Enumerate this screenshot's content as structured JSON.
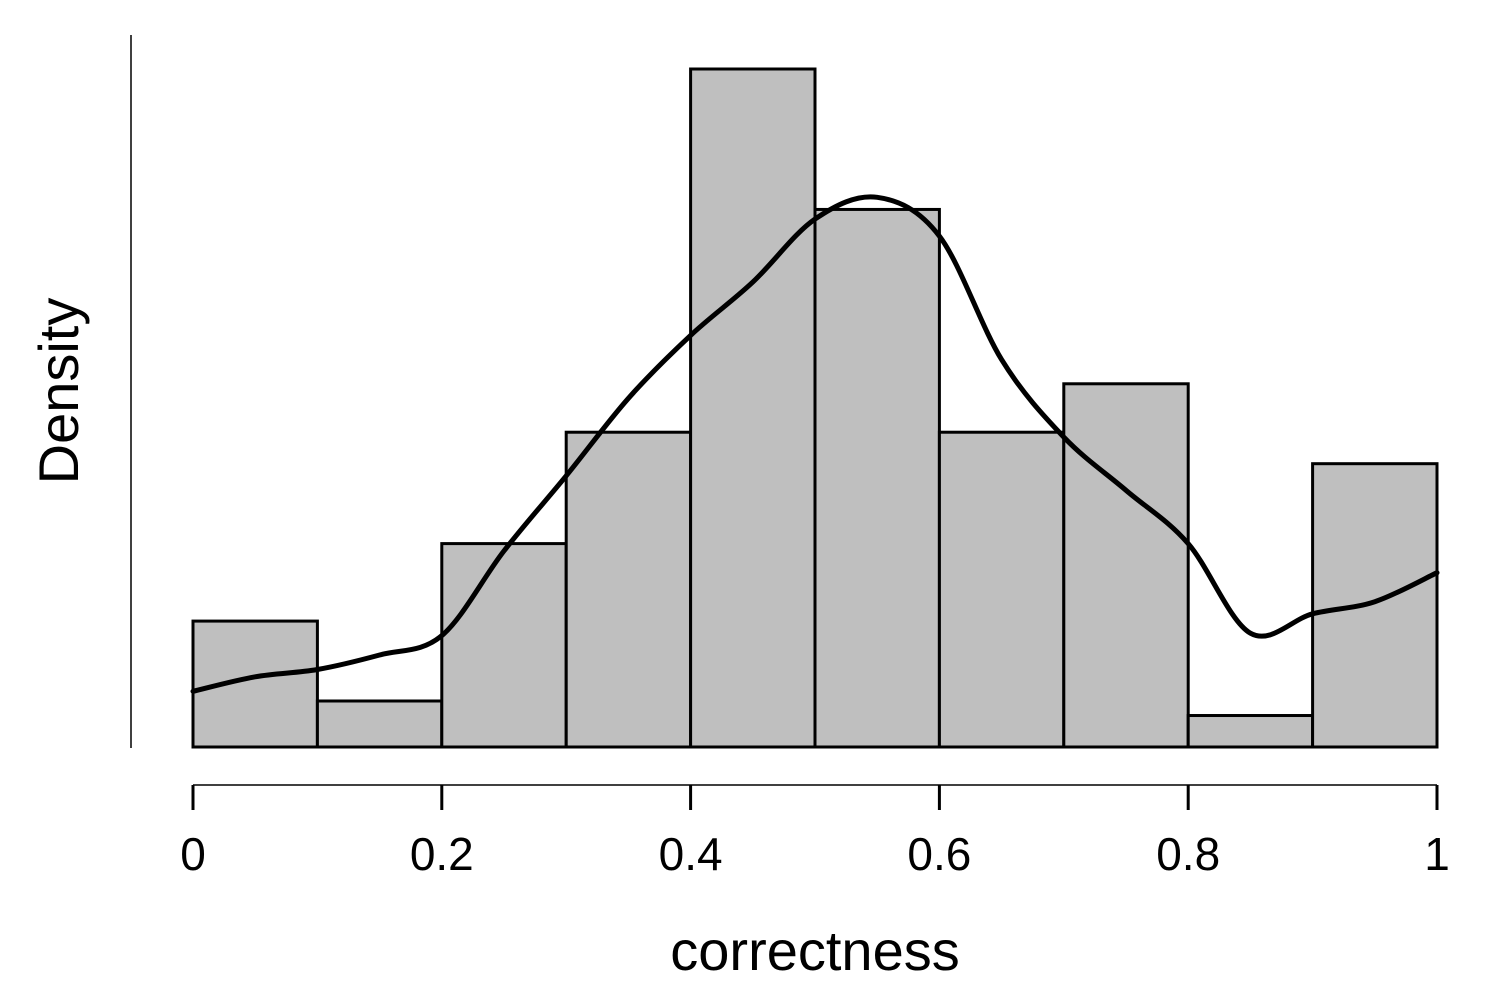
{
  "chart_data": {
    "type": "bar",
    "subtype": "histogram",
    "title": "",
    "xlabel": "correctness",
    "ylabel": "Density",
    "xlim": [
      0,
      1
    ],
    "ylim": [
      0,
      2.8
    ],
    "y_ticks_shown": false,
    "grid": false,
    "legend": "none",
    "x_ticks": [
      0,
      0.2,
      0.4,
      0.6,
      0.8,
      1
    ],
    "x_tick_labels": [
      "0",
      "0.2",
      "0.4",
      "0.6",
      "0.8",
      "1"
    ],
    "bins": [
      {
        "from": 0.0,
        "to": 0.1,
        "density": 0.52
      },
      {
        "from": 0.1,
        "to": 0.2,
        "density": 0.19
      },
      {
        "from": 0.2,
        "to": 0.3,
        "density": 0.84
      },
      {
        "from": 0.3,
        "to": 0.4,
        "density": 1.3
      },
      {
        "from": 0.4,
        "to": 0.5,
        "density": 2.8
      },
      {
        "from": 0.5,
        "to": 0.6,
        "density": 2.22
      },
      {
        "from": 0.6,
        "to": 0.7,
        "density": 1.3
      },
      {
        "from": 0.7,
        "to": 0.8,
        "density": 1.5
      },
      {
        "from": 0.8,
        "to": 0.9,
        "density": 0.13
      },
      {
        "from": 0.9,
        "to": 1.0,
        "density": 1.17
      }
    ],
    "density_curve": {
      "x": [
        0.0,
        0.05,
        0.1,
        0.15,
        0.2,
        0.25,
        0.3,
        0.35,
        0.4,
        0.45,
        0.5,
        0.55,
        0.6,
        0.65,
        0.7,
        0.75,
        0.8,
        0.85,
        0.9,
        0.95,
        1.0
      ],
      "y": [
        0.23,
        0.29,
        0.32,
        0.38,
        0.46,
        0.81,
        1.12,
        1.44,
        1.7,
        1.92,
        2.18,
        2.27,
        2.11,
        1.6,
        1.28,
        1.06,
        0.84,
        0.47,
        0.55,
        0.6,
        0.72
      ]
    },
    "colors": {
      "bar_fill": "#bfbfbf",
      "bar_stroke": "#000000",
      "curve": "#000000"
    }
  }
}
